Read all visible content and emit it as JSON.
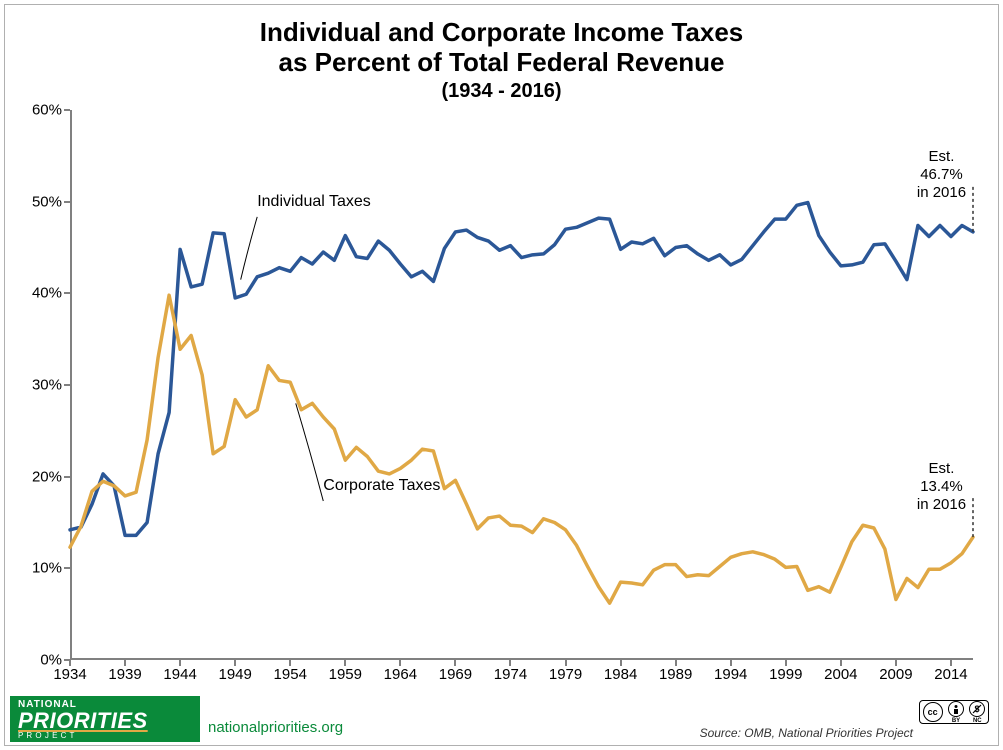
{
  "title": {
    "line1": "Individual and Corporate Income Taxes",
    "line2": "as Percent of Total Federal Revenue",
    "subtitle": "(1934 - 2016)",
    "fontsize_main": 26,
    "fontsize_sub": 20,
    "fontweight": "bold",
    "color": "#000000"
  },
  "chart": {
    "type": "line",
    "background_color": "#ffffff",
    "axis_color": "#808080",
    "axis_width": 2,
    "x": {
      "label": null,
      "min": 1934,
      "max": 2016,
      "ticks": [
        1934,
        1939,
        1944,
        1949,
        1954,
        1959,
        1964,
        1969,
        1974,
        1979,
        1984,
        1989,
        1994,
        1999,
        2004,
        2009,
        2014
      ],
      "tick_fontsize": 15
    },
    "y": {
      "label": null,
      "min": 0,
      "max": 60,
      "ticks": [
        0,
        10,
        20,
        30,
        40,
        50,
        60
      ],
      "tick_format": "{v}%",
      "tick_fontsize": 15
    },
    "series": [
      {
        "name": "Individual Taxes",
        "color": "#2b5797",
        "line_width": 3.5,
        "label_pos": {
          "year": 1951,
          "pct": 49
        },
        "leader_to": {
          "year": 1949.5,
          "pct": 41.5
        },
        "end_annotation": {
          "text_line1": "Est. 46.7%",
          "text_line2": "in 2016",
          "year": 2013,
          "pct": 55
        },
        "data": [
          [
            1934,
            14.2
          ],
          [
            1935,
            14.5
          ],
          [
            1936,
            17.0
          ],
          [
            1937,
            20.3
          ],
          [
            1938,
            19.0
          ],
          [
            1939,
            13.6
          ],
          [
            1940,
            13.6
          ],
          [
            1941,
            15.0
          ],
          [
            1942,
            22.5
          ],
          [
            1943,
            27.0
          ],
          [
            1944,
            44.8
          ],
          [
            1945,
            40.7
          ],
          [
            1946,
            41.0
          ],
          [
            1947,
            46.6
          ],
          [
            1948,
            46.5
          ],
          [
            1949,
            39.5
          ],
          [
            1950,
            39.9
          ],
          [
            1951,
            41.8
          ],
          [
            1952,
            42.2
          ],
          [
            1953,
            42.8
          ],
          [
            1954,
            42.4
          ],
          [
            1955,
            43.9
          ],
          [
            1956,
            43.2
          ],
          [
            1957,
            44.5
          ],
          [
            1958,
            43.6
          ],
          [
            1959,
            46.3
          ],
          [
            1960,
            44.0
          ],
          [
            1961,
            43.8
          ],
          [
            1962,
            45.7
          ],
          [
            1963,
            44.7
          ],
          [
            1964,
            43.2
          ],
          [
            1965,
            41.8
          ],
          [
            1966,
            42.4
          ],
          [
            1967,
            41.3
          ],
          [
            1968,
            44.9
          ],
          [
            1969,
            46.7
          ],
          [
            1970,
            46.9
          ],
          [
            1971,
            46.1
          ],
          [
            1972,
            45.7
          ],
          [
            1973,
            44.7
          ],
          [
            1974,
            45.2
          ],
          [
            1975,
            43.9
          ],
          [
            1976,
            44.2
          ],
          [
            1977,
            44.3
          ],
          [
            1978,
            45.3
          ],
          [
            1979,
            47.0
          ],
          [
            1980,
            47.2
          ],
          [
            1981,
            47.7
          ],
          [
            1982,
            48.2
          ],
          [
            1983,
            48.1
          ],
          [
            1984,
            44.8
          ],
          [
            1985,
            45.6
          ],
          [
            1986,
            45.4
          ],
          [
            1987,
            46.0
          ],
          [
            1988,
            44.1
          ],
          [
            1989,
            45.0
          ],
          [
            1990,
            45.2
          ],
          [
            1991,
            44.3
          ],
          [
            1992,
            43.6
          ],
          [
            1993,
            44.2
          ],
          [
            1994,
            43.1
          ],
          [
            1995,
            43.7
          ],
          [
            1996,
            45.2
          ],
          [
            1997,
            46.7
          ],
          [
            1998,
            48.1
          ],
          [
            1999,
            48.1
          ],
          [
            2000,
            49.6
          ],
          [
            2001,
            49.9
          ],
          [
            2002,
            46.3
          ],
          [
            2003,
            44.5
          ],
          [
            2004,
            43.0
          ],
          [
            2005,
            43.1
          ],
          [
            2006,
            43.4
          ],
          [
            2007,
            45.3
          ],
          [
            2008,
            45.4
          ],
          [
            2009,
            43.5
          ],
          [
            2010,
            41.5
          ],
          [
            2011,
            47.4
          ],
          [
            2012,
            46.2
          ],
          [
            2013,
            47.4
          ],
          [
            2014,
            46.2
          ],
          [
            2015,
            47.4
          ],
          [
            2016,
            46.7
          ]
        ]
      },
      {
        "name": "Corporate Taxes",
        "color": "#e0a845",
        "line_width": 3.5,
        "label_pos": {
          "year": 1957,
          "pct": 18
        },
        "leader_to": {
          "year": 1954.5,
          "pct": 28
        },
        "end_annotation": {
          "text_line1": "Est. 13.4%",
          "text_line2": "in 2016",
          "year": 2013,
          "pct": 21
        },
        "data": [
          [
            1934,
            12.3
          ],
          [
            1935,
            14.6
          ],
          [
            1936,
            18.4
          ],
          [
            1937,
            19.5
          ],
          [
            1938,
            19.0
          ],
          [
            1939,
            17.9
          ],
          [
            1940,
            18.3
          ],
          [
            1941,
            24.0
          ],
          [
            1942,
            33.0
          ],
          [
            1943,
            39.8
          ],
          [
            1944,
            33.9
          ],
          [
            1945,
            35.4
          ],
          [
            1946,
            31.1
          ],
          [
            1947,
            22.5
          ],
          [
            1948,
            23.3
          ],
          [
            1949,
            28.4
          ],
          [
            1950,
            26.5
          ],
          [
            1951,
            27.3
          ],
          [
            1952,
            32.1
          ],
          [
            1953,
            30.5
          ],
          [
            1954,
            30.3
          ],
          [
            1955,
            27.3
          ],
          [
            1956,
            28.0
          ],
          [
            1957,
            26.5
          ],
          [
            1958,
            25.2
          ],
          [
            1959,
            21.8
          ],
          [
            1960,
            23.2
          ],
          [
            1961,
            22.2
          ],
          [
            1962,
            20.6
          ],
          [
            1963,
            20.3
          ],
          [
            1964,
            20.9
          ],
          [
            1965,
            21.8
          ],
          [
            1966,
            23.0
          ],
          [
            1967,
            22.8
          ],
          [
            1968,
            18.7
          ],
          [
            1969,
            19.6
          ],
          [
            1970,
            17.0
          ],
          [
            1971,
            14.3
          ],
          [
            1972,
            15.5
          ],
          [
            1973,
            15.7
          ],
          [
            1974,
            14.7
          ],
          [
            1975,
            14.6
          ],
          [
            1976,
            13.9
          ],
          [
            1977,
            15.4
          ],
          [
            1978,
            15.0
          ],
          [
            1979,
            14.2
          ],
          [
            1980,
            12.5
          ],
          [
            1981,
            10.2
          ],
          [
            1982,
            8.0
          ],
          [
            1983,
            6.2
          ],
          [
            1984,
            8.5
          ],
          [
            1985,
            8.4
          ],
          [
            1986,
            8.2
          ],
          [
            1987,
            9.8
          ],
          [
            1988,
            10.4
          ],
          [
            1989,
            10.4
          ],
          [
            1990,
            9.1
          ],
          [
            1991,
            9.3
          ],
          [
            1992,
            9.2
          ],
          [
            1993,
            10.2
          ],
          [
            1994,
            11.2
          ],
          [
            1995,
            11.6
          ],
          [
            1996,
            11.8
          ],
          [
            1997,
            11.5
          ],
          [
            1998,
            11.0
          ],
          [
            1999,
            10.1
          ],
          [
            2000,
            10.2
          ],
          [
            2001,
            7.6
          ],
          [
            2002,
            8.0
          ],
          [
            2003,
            7.4
          ],
          [
            2004,
            10.1
          ],
          [
            2005,
            12.9
          ],
          [
            2006,
            14.7
          ],
          [
            2007,
            14.4
          ],
          [
            2008,
            12.1
          ],
          [
            2009,
            6.6
          ],
          [
            2010,
            8.9
          ],
          [
            2011,
            7.9
          ],
          [
            2012,
            9.9
          ],
          [
            2013,
            9.9
          ],
          [
            2014,
            10.6
          ],
          [
            2015,
            11.6
          ],
          [
            2016,
            13.4
          ]
        ]
      }
    ]
  },
  "footer": {
    "logo": {
      "top_text": "NATIONAL",
      "main_text": "PRIORITIES",
      "bottom_text": "P R O J E C T",
      "bg_color": "#0a8a3a",
      "text_color": "#ffffff",
      "underline_color": "#e0a845"
    },
    "site": "nationalpriorities.org",
    "site_color": "#0a8a3a",
    "source": "Source: OMB, National Priorities Project",
    "cc": {
      "type": "CC-BY-NC",
      "parts": [
        "cc",
        "BY",
        "NC"
      ]
    }
  }
}
